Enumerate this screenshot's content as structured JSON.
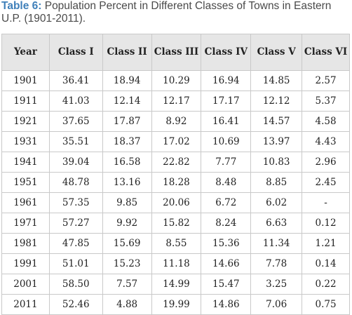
{
  "caption": {
    "label": "Table 6:",
    "text": " Population Percent in Different Classes of Towns in Eastern U.P. (1901-2011)."
  },
  "table": {
    "headers": [
      "Year",
      "Class I",
      "Class II",
      "Class III",
      "Class IV",
      "Class V",
      "Class VI"
    ],
    "rows": [
      [
        "1901",
        "36.41",
        "18.94",
        "10.29",
        "16.94",
        "14.85",
        "2.57"
      ],
      [
        "1911",
        "41.03",
        "12.14",
        "12.17",
        "17.17",
        "12.12",
        "5.37"
      ],
      [
        "1921",
        "37.65",
        "17.87",
        "8.92",
        "16.41",
        "14.57",
        "4.58"
      ],
      [
        "1931",
        "35.51",
        "18.37",
        "17.02",
        "10.69",
        "13.97",
        "4.43"
      ],
      [
        "1941",
        "39.04",
        "16.58",
        "22.82",
        "7.77",
        "10.83",
        "2.96"
      ],
      [
        "1951",
        "48.78",
        "13.16",
        "18.28",
        "8.48",
        "8.85",
        "2.45"
      ],
      [
        "1961",
        "57.35",
        "9.85",
        "20.06",
        "6.72",
        "6.02",
        "-"
      ],
      [
        "1971",
        "57.27",
        "9.92",
        "15.82",
        "8.24",
        "6.63",
        "0.12"
      ],
      [
        "1981",
        "47.85",
        "15.69",
        "8.55",
        "15.36",
        "11.34",
        "1.21"
      ],
      [
        "1991",
        "51.01",
        "15.23",
        "11.18",
        "14.66",
        "7.78",
        "0.14"
      ],
      [
        "2001",
        "58.50",
        "7.57",
        "14.99",
        "15.47",
        "3.25",
        "0.22"
      ],
      [
        "2011",
        "52.46",
        "4.88",
        "19.99",
        "14.86",
        "7.06",
        "0.75"
      ]
    ]
  },
  "colors": {
    "label": "#3f80ba",
    "header_bg": "#e6e6e6",
    "border": "#c9c9c9"
  }
}
